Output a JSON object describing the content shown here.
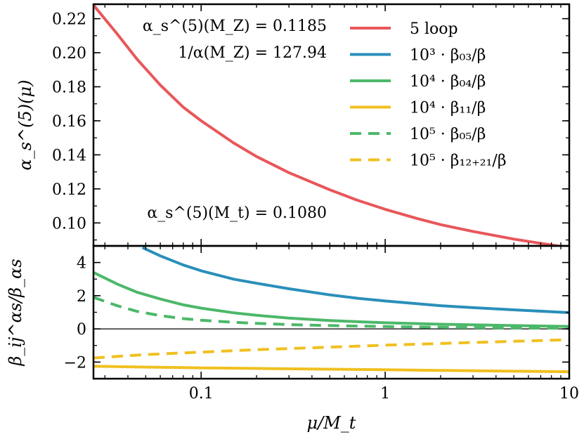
{
  "chart_data": [
    {
      "type": "line",
      "panel": "top",
      "xscale": "log",
      "xlim": [
        0.026,
        10
      ],
      "ylim": [
        0.0865,
        0.2285
      ],
      "ylabel": "α_s^(5)(μ)",
      "yticks": [
        {
          "value": 0.1,
          "label": "0.10"
        },
        {
          "value": 0.12,
          "label": "0.12"
        },
        {
          "value": 0.14,
          "label": "0.14"
        },
        {
          "value": 0.16,
          "label": "0.16"
        },
        {
          "value": 0.18,
          "label": "0.18"
        },
        {
          "value": 0.2,
          "label": "0.20"
        },
        {
          "value": 0.22,
          "label": "0.22"
        }
      ],
      "annotations": [
        {
          "id": "alphas-mz",
          "text": "α_s^(5)(M_Z) = 0.1185"
        },
        {
          "id": "inv-alpha-mz",
          "text": "1/α(M_Z) = 127.94"
        },
        {
          "id": "alphas-mt",
          "text": "α_s^(5)(M_t) = 0.1080"
        }
      ],
      "series": [
        {
          "name": "5 loop",
          "color": "#e8575a",
          "dash": "solid",
          "x": [
            0.026,
            0.035,
            0.045,
            0.06,
            0.08,
            0.1,
            0.15,
            0.2,
            0.3,
            0.5,
            0.7,
            1,
            1.5,
            2,
            3,
            5,
            7,
            10
          ],
          "y": [
            0.228,
            0.211,
            0.196,
            0.181,
            0.168,
            0.16,
            0.147,
            0.139,
            0.1295,
            0.1195,
            0.1135,
            0.108,
            0.1025,
            0.099,
            0.095,
            0.0905,
            0.088,
            0.0855
          ]
        }
      ]
    },
    {
      "type": "line",
      "panel": "bottom",
      "xscale": "log",
      "xlim": [
        0.026,
        10
      ],
      "ylim": [
        -3,
        5
      ],
      "xlabel": "μ/M_t",
      "ylabel": "β_ij^αs/β_αs",
      "xticks": [
        {
          "value": 0.1,
          "label": "0.1"
        },
        {
          "value": 1,
          "label": "1"
        },
        {
          "value": 10,
          "label": "10"
        }
      ],
      "yticks": [
        {
          "value": -2,
          "label": "−2"
        },
        {
          "value": 0,
          "label": "0"
        },
        {
          "value": 2,
          "label": "2"
        },
        {
          "value": 4,
          "label": "4"
        }
      ],
      "series": [
        {
          "name": "10³ · β₀₃/β",
          "color": "#2a8fba",
          "dash": "solid",
          "x": [
            0.048,
            0.06,
            0.08,
            0.1,
            0.15,
            0.2,
            0.3,
            0.5,
            0.7,
            1,
            2,
            3,
            5,
            10
          ],
          "y": [
            4.9,
            4.4,
            3.85,
            3.5,
            3.0,
            2.75,
            2.42,
            2.05,
            1.85,
            1.68,
            1.4,
            1.28,
            1.15,
            0.98
          ]
        },
        {
          "name": "10⁴ · β₀₄/β",
          "color": "#4cb86a",
          "dash": "solid",
          "x": [
            0.026,
            0.035,
            0.045,
            0.06,
            0.08,
            0.1,
            0.15,
            0.2,
            0.3,
            0.5,
            1,
            2,
            5,
            10
          ],
          "y": [
            3.4,
            2.7,
            2.2,
            1.8,
            1.45,
            1.25,
            0.97,
            0.82,
            0.65,
            0.5,
            0.37,
            0.28,
            0.2,
            0.15
          ]
        },
        {
          "name": "10⁴ · β₁₁/β",
          "color": "#f0c020",
          "dash": "solid",
          "x": [
            0.026,
            0.05,
            0.1,
            0.2,
            0.5,
            1,
            2,
            5,
            10
          ],
          "y": [
            -2.25,
            -2.3,
            -2.35,
            -2.38,
            -2.43,
            -2.46,
            -2.5,
            -2.55,
            -2.58
          ]
        },
        {
          "name": "10⁵ · β₀₅/β",
          "color": "#4cb86a",
          "dash": "dashed",
          "x": [
            0.026,
            0.035,
            0.045,
            0.06,
            0.08,
            0.1,
            0.15,
            0.2,
            0.3,
            0.5,
            1,
            2,
            5,
            10
          ],
          "y": [
            1.9,
            1.4,
            1.05,
            0.8,
            0.62,
            0.52,
            0.4,
            0.33,
            0.26,
            0.2,
            0.14,
            0.1,
            0.06,
            0.04
          ]
        },
        {
          "name": "10⁵ · β₁₂₊₂₁/β",
          "color": "#f0c020",
          "dash": "dashed",
          "x": [
            0.026,
            0.05,
            0.1,
            0.2,
            0.5,
            1,
            2,
            5,
            10
          ],
          "y": [
            -1.75,
            -1.55,
            -1.4,
            -1.25,
            -1.1,
            -0.98,
            -0.88,
            -0.75,
            -0.65
          ]
        }
      ]
    }
  ]
}
